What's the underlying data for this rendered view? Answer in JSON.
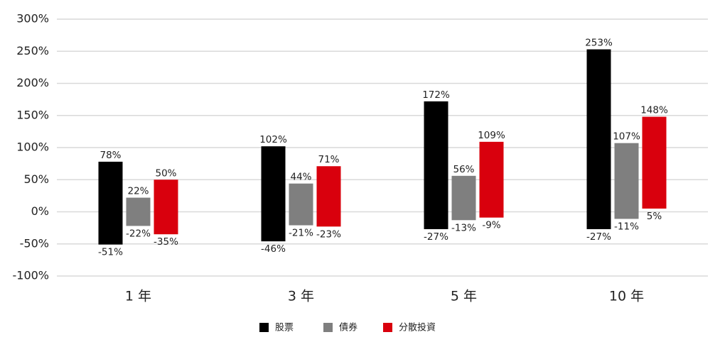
{
  "chart_data": {
    "type": "floating-bar",
    "categories": [
      "1 年",
      "3 年",
      "5 年",
      "10 年"
    ],
    "series": [
      {
        "name": "股票",
        "color": "#000000",
        "values": [
          78,
          102,
          172,
          253
        ],
        "value_labels": [
          "78%",
          "102%",
          "172%",
          "253%"
        ],
        "lows": [
          -51,
          -46,
          -27,
          -27
        ],
        "low_labels": [
          "-51%",
          "-46%",
          "-27%",
          "-27%"
        ]
      },
      {
        "name": "債券",
        "color": "#7f7f7f",
        "values": [
          22,
          44,
          56,
          107
        ],
        "value_labels": [
          "22%",
          "44%",
          "56%",
          "107%"
        ],
        "lows": [
          -22,
          -21,
          -13,
          -11
        ],
        "low_labels": [
          "-22%",
          "-21%",
          "-13%",
          "-11%"
        ]
      },
      {
        "name": "分散投資",
        "color": "#d9000d",
        "values": [
          50,
          71,
          109,
          148
        ],
        "value_labels": [
          "50%",
          "71%",
          "109%",
          "148%"
        ],
        "lows": [
          -35,
          -23,
          -9,
          5
        ],
        "low_labels": [
          "-35%",
          "-23%",
          "-9%",
          "5%"
        ]
      }
    ],
    "ylim": [
      -100,
      300
    ],
    "yticks": [
      {
        "value": -100,
        "label": "-100%"
      },
      {
        "value": -50,
        "label": "-50%"
      },
      {
        "value": 0,
        "label": "0%"
      },
      {
        "value": 50,
        "label": "50%"
      },
      {
        "value": 100,
        "label": "100%"
      },
      {
        "value": 150,
        "label": "150%"
      },
      {
        "value": 200,
        "label": "200%"
      },
      {
        "value": 250,
        "label": "250%"
      },
      {
        "value": 300,
        "label": "300%"
      }
    ],
    "grid": true
  }
}
